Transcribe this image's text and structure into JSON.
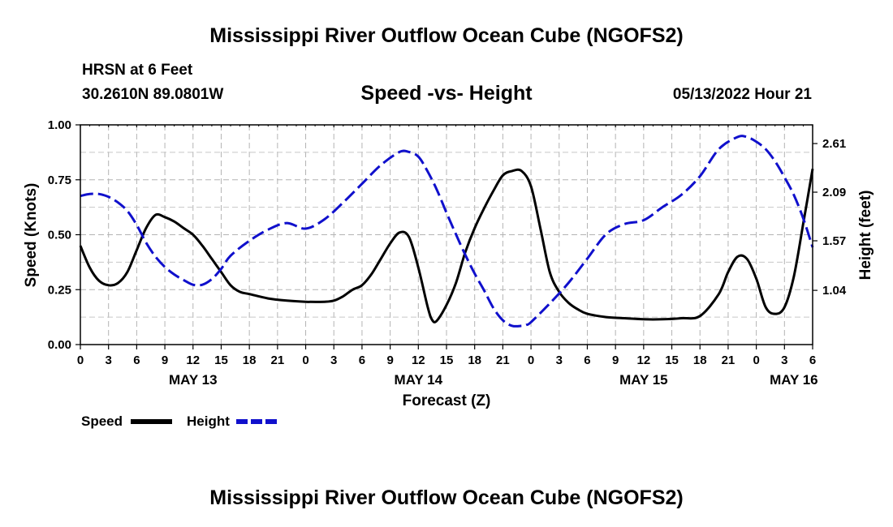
{
  "header": {
    "title": "Mississippi River Outflow Ocean Cube (NGOFS2)",
    "station": "HRSN at 6 Feet",
    "coords": "30.2610N  89.0801W",
    "subtitle": "Speed -vs- Height",
    "datetime": "05/13/2022 Hour 21",
    "bottom_title": "Mississippi River Outflow Ocean Cube (NGOFS2)"
  },
  "chart_data": {
    "type": "line",
    "title": "Speed -vs- Height",
    "xlabel": "Forecast (Z)",
    "ylabel": "Speed (Knots)",
    "y2label": "Height (feet)",
    "x_unit": "hours since 05/13/2022 00Z",
    "xlim": [
      0,
      78
    ],
    "ylim": [
      0,
      1
    ],
    "y2lim": [
      0.46,
      2.81
    ],
    "x_tick_labels": [
      "0",
      "3",
      "6",
      "9",
      "12",
      "15",
      "18",
      "21",
      "0",
      "3",
      "6",
      "9",
      "12",
      "15",
      "18",
      "21",
      "0",
      "3",
      "6",
      "9",
      "12",
      "15",
      "18",
      "21",
      "0",
      "3",
      "6"
    ],
    "day_labels": [
      {
        "hour": 12,
        "label": "MAY 13"
      },
      {
        "hour": 36,
        "label": "MAY 14"
      },
      {
        "hour": 60,
        "label": "MAY 15"
      },
      {
        "hour": 76,
        "label": "MAY 16"
      }
    ],
    "y_ticks": [
      "0.00",
      "0.25",
      "0.50",
      "0.75",
      "1.00"
    ],
    "y2_ticks": [
      "1.04",
      "1.57",
      "2.09",
      "2.61"
    ],
    "grid": true,
    "legend": {
      "placement": "bottom-left",
      "speed_label": "Speed",
      "height_label": "Height"
    },
    "series": [
      {
        "name": "Speed",
        "axis": "left",
        "color": "#000000",
        "dash": "solid",
        "x": [
          0,
          1,
          2,
          3,
          4,
          5,
          6,
          7,
          8,
          9,
          10,
          11,
          12,
          13,
          14,
          15,
          16,
          17,
          18,
          20,
          22,
          24,
          26,
          27,
          28,
          29,
          30,
          31,
          32,
          33,
          34,
          35,
          36,
          37,
          37.5,
          38,
          39,
          40,
          41,
          42,
          43,
          44,
          45,
          46,
          47,
          48,
          49,
          50,
          51,
          52,
          53,
          54,
          56,
          58,
          60,
          62,
          64,
          66,
          68,
          69,
          70,
          71,
          72,
          73,
          74,
          75,
          76,
          77,
          78
        ],
        "values": [
          0.45,
          0.35,
          0.29,
          0.27,
          0.28,
          0.33,
          0.43,
          0.53,
          0.59,
          0.58,
          0.56,
          0.53,
          0.5,
          0.45,
          0.39,
          0.33,
          0.27,
          0.24,
          0.23,
          0.21,
          0.2,
          0.195,
          0.195,
          0.2,
          0.22,
          0.25,
          0.27,
          0.32,
          0.39,
          0.46,
          0.51,
          0.49,
          0.35,
          0.17,
          0.11,
          0.11,
          0.18,
          0.28,
          0.42,
          0.53,
          0.62,
          0.7,
          0.77,
          0.79,
          0.79,
          0.72,
          0.53,
          0.33,
          0.24,
          0.19,
          0.16,
          0.14,
          0.125,
          0.12,
          0.115,
          0.115,
          0.12,
          0.13,
          0.23,
          0.33,
          0.4,
          0.39,
          0.3,
          0.17,
          0.14,
          0.17,
          0.31,
          0.55,
          0.8
        ]
      },
      {
        "name": "Height",
        "axis": "right",
        "color": "#1010cc",
        "dash": "dashed",
        "x": [
          0,
          1,
          2,
          3,
          4,
          5,
          6,
          7,
          8,
          9,
          10,
          11,
          12,
          13,
          14,
          15,
          16,
          18,
          20,
          22,
          24,
          26,
          28,
          30,
          32,
          34,
          35,
          36,
          37,
          38,
          39,
          40,
          41,
          42,
          43,
          44,
          45,
          46,
          47,
          47.5,
          48,
          50,
          52,
          54,
          56,
          58,
          60,
          62,
          64,
          66,
          68,
          70,
          71,
          72,
          73,
          74,
          75,
          76,
          77,
          78
        ],
        "values": [
          2.05,
          2.07,
          2.07,
          2.04,
          1.98,
          1.89,
          1.74,
          1.55,
          1.4,
          1.29,
          1.21,
          1.15,
          1.1,
          1.1,
          1.16,
          1.27,
          1.41,
          1.57,
          1.69,
          1.76,
          1.7,
          1.8,
          1.98,
          2.18,
          2.38,
          2.52,
          2.52,
          2.47,
          2.31,
          2.11,
          1.87,
          1.64,
          1.42,
          1.22,
          1.04,
          0.85,
          0.72,
          0.66,
          0.66,
          0.67,
          0.7,
          0.9,
          1.12,
          1.38,
          1.64,
          1.75,
          1.79,
          1.93,
          2.06,
          2.26,
          2.55,
          2.68,
          2.68,
          2.63,
          2.55,
          2.42,
          2.25,
          2.06,
          1.81,
          1.5
        ]
      }
    ]
  }
}
